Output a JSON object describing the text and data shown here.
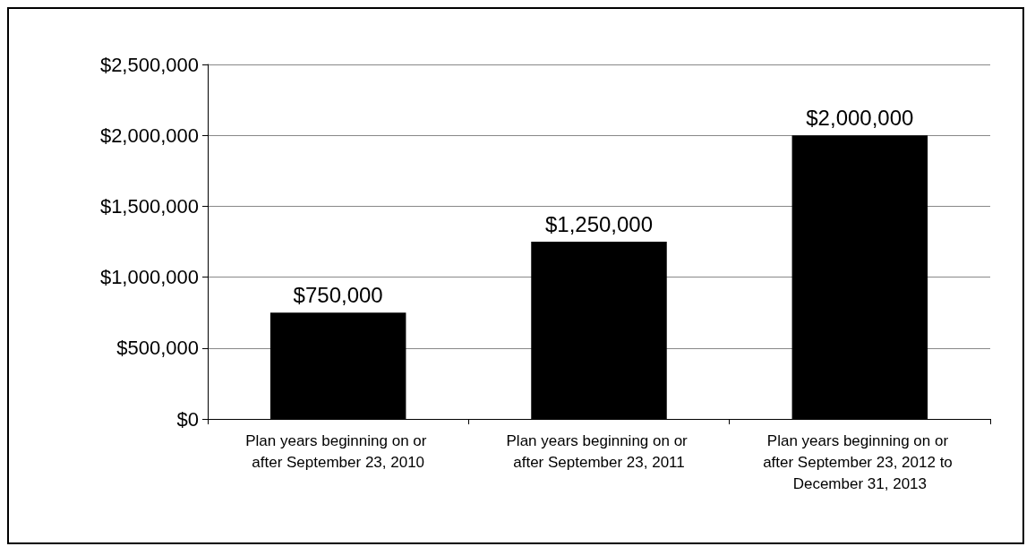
{
  "chart_data": {
    "type": "bar",
    "categories": [
      "Plan years beginning on or after September 23, 2010",
      "Plan years beginning on or after September 23, 2011",
      "Plan years beginning on or after September 23, 2012 to December 31, 2013"
    ],
    "values": [
      750000,
      1250000,
      2000000
    ],
    "value_labels": [
      "$750,000",
      "$1,250,000",
      "$2,000,000"
    ],
    "color": "#000000",
    "ylim": [
      0,
      2500000
    ],
    "yticks": [
      {
        "value": 0,
        "label": "$0"
      },
      {
        "value": 500000,
        "label": "$500,000"
      },
      {
        "value": 1000000,
        "label": "$1,000,000"
      },
      {
        "value": 1500000,
        "label": "$1,500,000"
      },
      {
        "value": 2000000,
        "label": "$2,000,000"
      },
      {
        "value": 2500000,
        "label": "$2,500,000"
      }
    ],
    "grid": "y"
  }
}
